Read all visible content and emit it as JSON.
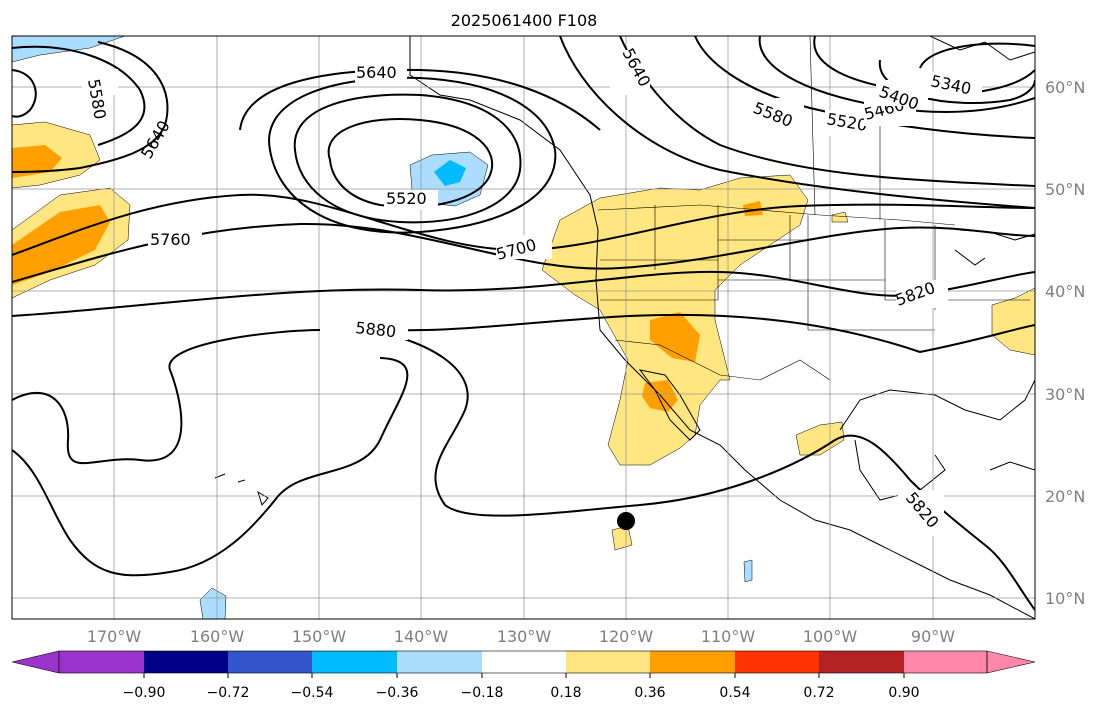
{
  "title": "2025061400 F108",
  "map": {
    "lon_range": [
      -180,
      -80
    ],
    "lat_range": [
      8,
      65
    ],
    "lon_ticks": [
      "170°W",
      "160°W",
      "150°W",
      "140°W",
      "130°W",
      "120°W",
      "110°W",
      "100°W",
      "90°W"
    ],
    "lat_ticks": [
      "60°N",
      "50°N",
      "40°N",
      "30°N",
      "20°N",
      "10°N"
    ],
    "gridlines": true,
    "contour_labels": [
      "5580",
      "5640",
      "5640",
      "5640",
      "5520",
      "5760",
      "5700",
      "5880",
      "5820",
      "5820",
      "5580",
      "5520",
      "5460",
      "5400",
      "5340"
    ],
    "marker": {
      "label": "storm-center",
      "lon": -120,
      "lat": 17.5
    }
  },
  "colorbar": {
    "tick_labels": [
      "−0.90",
      "−0.72",
      "−0.54",
      "−0.36",
      "−0.18",
      "0.18",
      "0.36",
      "0.54",
      "0.72",
      "0.90"
    ],
    "colors": [
      "#9933cc",
      "#000088",
      "#3355cc",
      "#00bbff",
      "#aaddff",
      "#ffffff",
      "#ffe680",
      "#ffa000",
      "#ff3300",
      "#b22222",
      "#ff88aa"
    ],
    "extend": "both"
  }
}
